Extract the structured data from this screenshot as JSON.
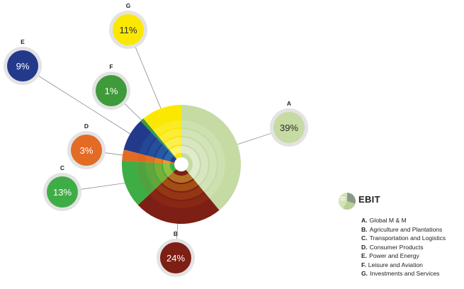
{
  "chart_data": {
    "type": "pie",
    "title": "EBIT",
    "slices": [
      {
        "key": "A",
        "label": "Global M & M",
        "value": 39,
        "display": "39%",
        "color": "#c5dba3",
        "text_color": "#2a2a2a"
      },
      {
        "key": "B",
        "label": "Agriculture and Plantations",
        "value": 24,
        "display": "24%",
        "color": "#7d1f14",
        "text_color": "#ffffff"
      },
      {
        "key": "C",
        "label": "Transportation and Logistics",
        "value": 13,
        "display": "13%",
        "color": "#3fad46",
        "text_color": "#ffffff"
      },
      {
        "key": "D",
        "label": "Consumer Products",
        "value": 3,
        "display": "3%",
        "color": "#e36b24",
        "text_color": "#ffffff"
      },
      {
        "key": "E",
        "label": "Power and Energy",
        "value": 9,
        "display": "9%",
        "color": "#233a8c",
        "text_color": "#ffffff"
      },
      {
        "key": "F",
        "label": "Leisure and Aviation",
        "value": 1,
        "display": "1%",
        "color": "#3f9a3a",
        "text_color": "#ffffff"
      },
      {
        "key": "G",
        "label": "Investments and Services",
        "value": 11,
        "display": "11%",
        "color": "#fbe800",
        "text_color": "#2a2a2a"
      }
    ]
  },
  "legend": {
    "title": "EBIT",
    "items": [
      {
        "key": "A.",
        "label": "Global M & M"
      },
      {
        "key": "B.",
        "label": "Agriculture and Plantations"
      },
      {
        "key": "C.",
        "label": "Transportation and Logistics"
      },
      {
        "key": "D.",
        "label": "Consumer Products"
      },
      {
        "key": "E.",
        "label": "Power and Energy"
      },
      {
        "key": "F.",
        "label": "Leisure and Aviation"
      },
      {
        "key": "G.",
        "label": "Investments and Services"
      }
    ]
  }
}
